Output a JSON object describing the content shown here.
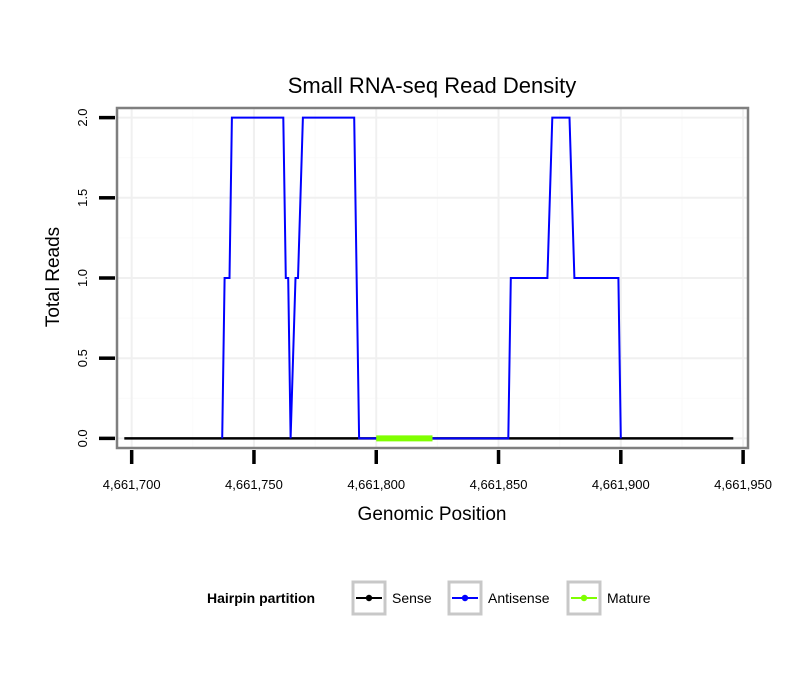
{
  "chart_data": {
    "type": "line",
    "title": "Small RNA-seq Read Density",
    "xlabel": "Genomic Position",
    "ylabel": "Total Reads",
    "xlim": [
      4661694,
      4661952
    ],
    "ylim": [
      -0.06,
      2.06
    ],
    "x_ticks": [
      4661700,
      4661750,
      4661800,
      4661850,
      4661900,
      4661950
    ],
    "x_tick_labels": [
      "4,661,700",
      "4,661,750",
      "4,661,800",
      "4,661,850",
      "4,661,900",
      "4,661,950"
    ],
    "y_ticks": [
      0,
      0.5,
      1,
      1.5,
      2
    ],
    "y_tick_labels": [
      "0.0",
      "0.5",
      "1.0",
      "1.5",
      "2.0"
    ],
    "grid": true,
    "legend": {
      "title": "Hairpin partition",
      "position": "bottom",
      "entries": [
        "Sense",
        "Antisense",
        "Mature"
      ]
    },
    "series": [
      {
        "name": "Sense",
        "color": "#000000",
        "x": [
          4661697,
          4661946
        ],
        "y": [
          0,
          0
        ]
      },
      {
        "name": "Antisense",
        "color": "#0000ff",
        "x": [
          4661737,
          4661738,
          4661740,
          4661741,
          4661762,
          4661763,
          4661764,
          4661765,
          4661767,
          4661768,
          4661770,
          4661771,
          4661791,
          4661793,
          4661854,
          4661855,
          4661870,
          4661872,
          4661879,
          4661881,
          4661899,
          4661900
        ],
        "y": [
          0,
          1,
          1,
          2,
          2,
          1,
          1,
          0,
          1,
          1,
          2,
          2,
          2,
          0,
          0,
          1,
          1,
          2,
          2,
          1,
          1,
          0
        ]
      },
      {
        "name": "Mature",
        "color": "#7fff00",
        "x": [
          4661800,
          4661823
        ],
        "y": [
          0,
          0
        ]
      }
    ]
  }
}
